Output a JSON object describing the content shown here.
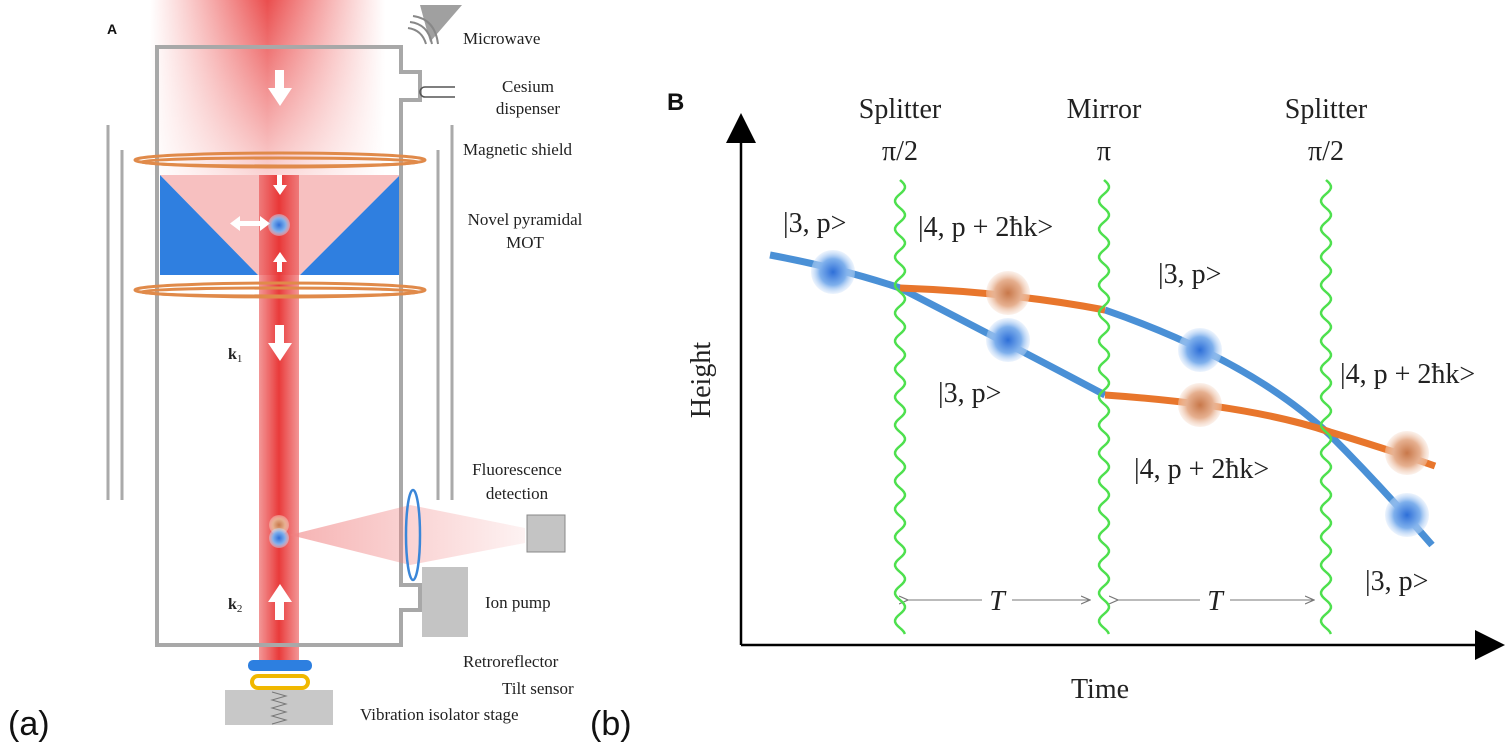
{
  "panel_a": {
    "label": "A",
    "caption": "(a)",
    "microwave": "Microwave",
    "cesium_dispenser": [
      "Cesium",
      "dispenser"
    ],
    "magnetic_shield": "Magnetic shield",
    "mot": [
      "Novel pyramidal",
      "MOT"
    ],
    "k1": {
      "symbol": "k",
      "subscript": "1"
    },
    "k2": {
      "symbol": "k",
      "subscript": "2"
    },
    "fluorescence_detection": [
      "Fluorescence",
      "detection"
    ],
    "ion_pump": "Ion pump",
    "retroreflector": "Retroreflector",
    "tilt_sensor": "Tilt sensor",
    "vibration_isolator_stage": "Vibration isolator stage"
  },
  "panel_b": {
    "label": "B",
    "caption": "(b)",
    "pulses": [
      {
        "name": "Splitter",
        "phase": "π/2"
      },
      {
        "name": "Mirror",
        "phase": "π"
      },
      {
        "name": "Splitter",
        "phase": "π/2"
      }
    ],
    "y_axis_label": "Height",
    "x_axis_label": "Time",
    "intervals": [
      "T",
      "T"
    ],
    "states": [
      "|3, p>",
      "|4, p + 2ħk>",
      "|3, p>",
      "|3, p>",
      "|4, p + 2ħk>",
      "|4, p + 2ħk>",
      "|3, p>"
    ]
  }
}
